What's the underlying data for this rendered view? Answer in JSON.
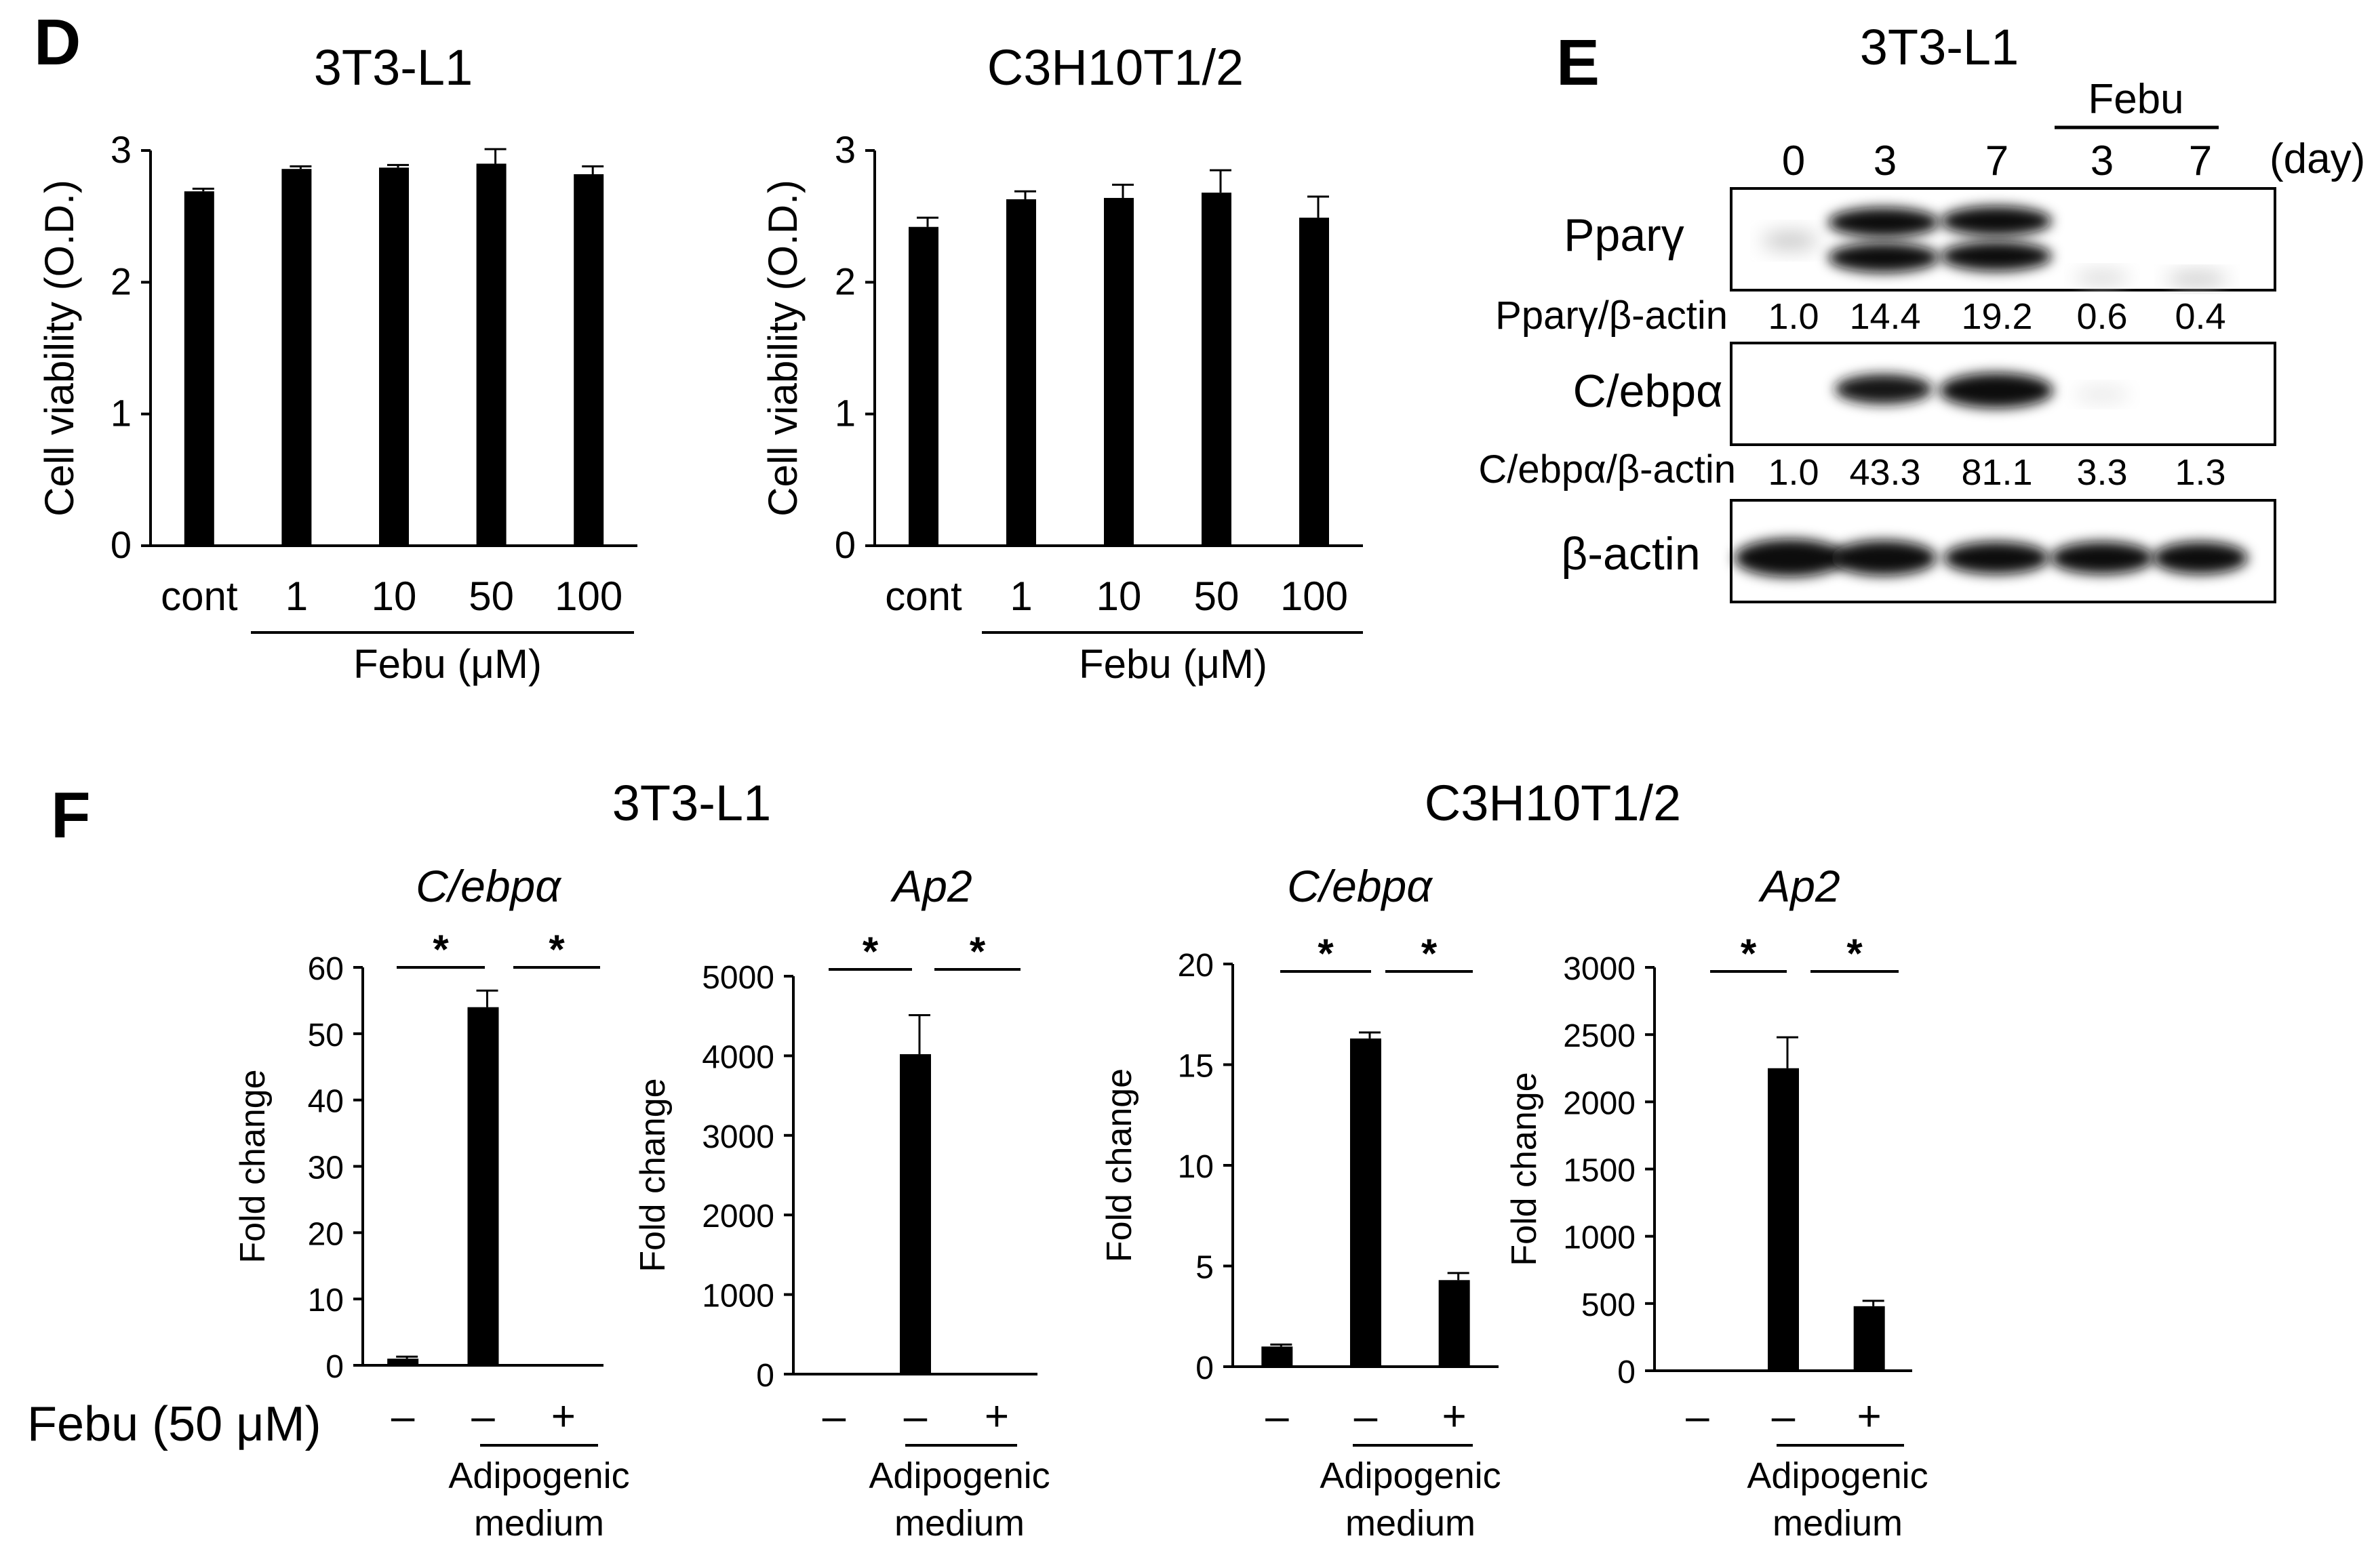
{
  "panels": {
    "d": "D",
    "e": "E",
    "f": "F"
  },
  "chart_data": [
    {
      "id": "d1",
      "type": "bar",
      "title": "3T3-L1",
      "ylabel": "Cell viability (O.D.)",
      "ylim": [
        0,
        3
      ],
      "yticks": [
        "0",
        "1",
        "2",
        "3"
      ],
      "categories": [
        "cont",
        "1",
        "10",
        "50",
        "100"
      ],
      "values": [
        2.69,
        2.86,
        2.87,
        2.9,
        2.82
      ],
      "errors": [
        0.02,
        0.02,
        0.02,
        0.11,
        0.06
      ],
      "group_label": "Febu (μM)"
    },
    {
      "id": "d2",
      "type": "bar",
      "title": "C3H10T1/2",
      "ylabel": "Cell viability (O.D.)",
      "ylim": [
        0,
        3
      ],
      "yticks": [
        "0",
        "1",
        "2",
        "3"
      ],
      "categories": [
        "cont",
        "1",
        "10",
        "50",
        "100"
      ],
      "values": [
        2.42,
        2.63,
        2.64,
        2.68,
        2.49
      ],
      "errors": [
        0.07,
        0.06,
        0.1,
        0.17,
        0.16
      ],
      "group_label": "Febu (μM)"
    },
    {
      "id": "f1",
      "type": "bar",
      "gene": "C/ebpα",
      "ylabel": "Fold change",
      "ylim": [
        0,
        60
      ],
      "yticks": [
        "0",
        "10",
        "20",
        "30",
        "40",
        "50",
        "60"
      ],
      "categories": [
        "–",
        "–",
        "+"
      ],
      "values": [
        1,
        54,
        0
      ],
      "errors": [
        0.3,
        2.5,
        0
      ],
      "significance": [
        "*",
        "*"
      ],
      "group_label": [
        "Adipogenic",
        "medium"
      ]
    },
    {
      "id": "f2",
      "type": "bar",
      "gene": "Ap2",
      "ylabel": "Fold change",
      "ylim": [
        0,
        5000
      ],
      "yticks": [
        "0",
        "1000",
        "2000",
        "3000",
        "4000",
        "5000"
      ],
      "categories": [
        "–",
        "–",
        "+"
      ],
      "values": [
        0,
        4020,
        0
      ],
      "errors": [
        0,
        490,
        0
      ],
      "significance": [
        "*",
        "*"
      ],
      "group_label": [
        "Adipogenic",
        "medium"
      ]
    },
    {
      "id": "f3",
      "type": "bar",
      "gene": "C/ebpα",
      "ylabel": "Fold change",
      "ylim": [
        0,
        20
      ],
      "yticks": [
        "0",
        "5",
        "10",
        "15",
        "20"
      ],
      "categories": [
        "–",
        "–",
        "+"
      ],
      "values": [
        1,
        16.3,
        4.3
      ],
      "errors": [
        0.1,
        0.3,
        0.35
      ],
      "significance": [
        "*",
        "*"
      ],
      "group_label": [
        "Adipogenic",
        "medium"
      ]
    },
    {
      "id": "f4",
      "type": "bar",
      "gene": "Ap2",
      "ylabel": "Fold change",
      "ylim": [
        0,
        3000
      ],
      "yticks": [
        "0",
        "500",
        "1000",
        "1500",
        "2000",
        "2500",
        "3000"
      ],
      "categories": [
        "–",
        "–",
        "+"
      ],
      "values": [
        0,
        2250,
        480
      ],
      "errors": [
        0,
        230,
        40
      ],
      "significance": [
        "*",
        "*"
      ],
      "group_label": [
        "Adipogenic",
        "medium"
      ]
    }
  ],
  "panel_f": {
    "title_left": "3T3-L1",
    "title_right": "C3H10T1/2",
    "febu_row_label": "Febu (50 μM)"
  },
  "blot": {
    "title": "3T3-L1",
    "febu_label": "Febu",
    "lanes": [
      "0",
      "3",
      "7",
      "3",
      "7"
    ],
    "day_label": "(day)",
    "band1": "Pparγ",
    "ratio1_label": "Pparγ/β-actin",
    "ratio1_values": [
      "1.0",
      "14.4",
      "19.2",
      "0.6",
      "0.4"
    ],
    "band2": "C/ebpα",
    "ratio2_label": "C/ebpα/β-actin",
    "ratio2_values": [
      "1.0",
      "43.3",
      "81.1",
      "3.3",
      "1.3"
    ],
    "band3": "β-actin"
  }
}
